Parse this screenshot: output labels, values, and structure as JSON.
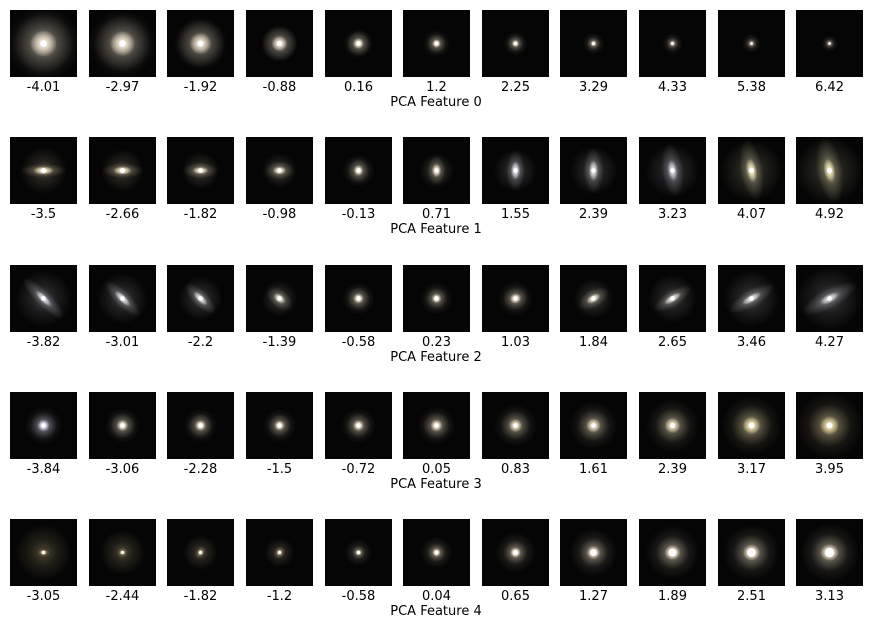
{
  "rows": [
    {
      "label": "PCA Feature 0",
      "values": [
        "-4.01",
        "-2.97",
        "-1.92",
        "-0.88",
        "0.16",
        "1.2",
        "2.25",
        "3.29",
        "4.33",
        "5.38",
        "6.42"
      ],
      "cells": [
        {
          "rx": 0.45,
          "ry": 0.45,
          "angle": 0,
          "halo": 0.55,
          "core": 0.1,
          "color": "#e8dcc8"
        },
        {
          "rx": 0.42,
          "ry": 0.42,
          "angle": 0,
          "halo": 0.5,
          "core": 0.1,
          "color": "#e6dac6"
        },
        {
          "rx": 0.36,
          "ry": 0.36,
          "angle": 0,
          "halo": 0.4,
          "core": 0.09,
          "color": "#e4d8c4"
        },
        {
          "rx": 0.26,
          "ry": 0.26,
          "angle": 0,
          "halo": 0.28,
          "core": 0.08,
          "color": "#e8dcc8"
        },
        {
          "rx": 0.18,
          "ry": 0.18,
          "angle": 0,
          "halo": 0.22,
          "core": 0.07,
          "color": "#f0e4cc"
        },
        {
          "rx": 0.14,
          "ry": 0.14,
          "angle": 0,
          "halo": 0.2,
          "core": 0.06,
          "color": "#f2e6ce"
        },
        {
          "rx": 0.12,
          "ry": 0.12,
          "angle": 0,
          "halo": 0.18,
          "core": 0.05,
          "color": "#f2e6ce"
        },
        {
          "rx": 0.1,
          "ry": 0.1,
          "angle": 0,
          "halo": 0.16,
          "core": 0.045,
          "color": "#f2e6ce"
        },
        {
          "rx": 0.09,
          "ry": 0.09,
          "angle": 0,
          "halo": 0.15,
          "core": 0.04,
          "color": "#f2e6ce"
        },
        {
          "rx": 0.08,
          "ry": 0.08,
          "angle": 0,
          "halo": 0.14,
          "core": 0.035,
          "color": "#f2e6ce"
        },
        {
          "rx": 0.07,
          "ry": 0.07,
          "angle": 0,
          "halo": 0.12,
          "core": 0.03,
          "color": "#f2e6ce"
        }
      ]
    },
    {
      "label": "PCA Feature 1",
      "values": [
        "-3.5",
        "-2.66",
        "-1.82",
        "-0.98",
        "-0.13",
        "0.71",
        "1.55",
        "2.39",
        "3.23",
        "4.07",
        "4.92"
      ],
      "cells": [
        {
          "rx": 0.34,
          "ry": 0.1,
          "angle": 0,
          "halo": 0.35,
          "core": 0.08,
          "color": "#f0e0b8"
        },
        {
          "rx": 0.3,
          "ry": 0.11,
          "angle": 0,
          "halo": 0.32,
          "core": 0.08,
          "color": "#efe0ba"
        },
        {
          "rx": 0.26,
          "ry": 0.12,
          "angle": 0,
          "halo": 0.28,
          "core": 0.07,
          "color": "#ede0c0"
        },
        {
          "rx": 0.22,
          "ry": 0.14,
          "angle": 0,
          "halo": 0.26,
          "core": 0.07,
          "color": "#ece0c4"
        },
        {
          "rx": 0.16,
          "ry": 0.18,
          "angle": 0,
          "halo": 0.24,
          "core": 0.07,
          "color": "#ede2c8"
        },
        {
          "rx": 0.14,
          "ry": 0.22,
          "angle": 0,
          "halo": 0.26,
          "core": 0.07,
          "color": "#ede2c8"
        },
        {
          "rx": 0.14,
          "ry": 0.3,
          "angle": 0,
          "halo": 0.32,
          "core": 0.07,
          "color": "#d8d6e0"
        },
        {
          "rx": 0.15,
          "ry": 0.34,
          "angle": 0,
          "halo": 0.36,
          "core": 0.07,
          "color": "#dcd8d8"
        },
        {
          "rx": 0.16,
          "ry": 0.4,
          "angle": -8,
          "halo": 0.4,
          "core": 0.07,
          "color": "#d0d0dc"
        },
        {
          "rx": 0.17,
          "ry": 0.46,
          "angle": -10,
          "halo": 0.46,
          "core": 0.08,
          "color": "#e8e0b4"
        },
        {
          "rx": 0.19,
          "ry": 0.5,
          "angle": -10,
          "halo": 0.5,
          "core": 0.08,
          "color": "#e8e0b0"
        }
      ]
    },
    {
      "label": "PCA Feature 2",
      "values": [
        "-3.82",
        "-3.01",
        "-2.2",
        "-1.39",
        "-0.58",
        "0.23",
        "1.03",
        "1.84",
        "2.65",
        "3.46",
        "4.27"
      ],
      "cells": [
        {
          "rx": 0.42,
          "ry": 0.12,
          "angle": 45,
          "halo": 0.42,
          "core": 0.07,
          "color": "#d8d8e4"
        },
        {
          "rx": 0.36,
          "ry": 0.12,
          "angle": 45,
          "halo": 0.38,
          "core": 0.07,
          "color": "#dcdce4"
        },
        {
          "rx": 0.3,
          "ry": 0.12,
          "angle": 45,
          "halo": 0.33,
          "core": 0.07,
          "color": "#e0dee0"
        },
        {
          "rx": 0.22,
          "ry": 0.14,
          "angle": 40,
          "halo": 0.27,
          "core": 0.07,
          "color": "#e8e0cc"
        },
        {
          "rx": 0.17,
          "ry": 0.17,
          "angle": 0,
          "halo": 0.24,
          "core": 0.07,
          "color": "#ece2c8"
        },
        {
          "rx": 0.16,
          "ry": 0.16,
          "angle": 0,
          "halo": 0.24,
          "core": 0.07,
          "color": "#ece2c8"
        },
        {
          "rx": 0.19,
          "ry": 0.17,
          "angle": -20,
          "halo": 0.26,
          "core": 0.07,
          "color": "#ece2c8"
        },
        {
          "rx": 0.25,
          "ry": 0.14,
          "angle": -30,
          "halo": 0.3,
          "core": 0.07,
          "color": "#e8e0cc"
        },
        {
          "rx": 0.32,
          "ry": 0.12,
          "angle": -32,
          "halo": 0.36,
          "core": 0.07,
          "color": "#e0dcd8"
        },
        {
          "rx": 0.38,
          "ry": 0.13,
          "angle": -30,
          "halo": 0.42,
          "core": 0.07,
          "color": "#dcdcdc"
        },
        {
          "rx": 0.45,
          "ry": 0.15,
          "angle": -28,
          "halo": 0.48,
          "core": 0.07,
          "color": "#d4d4dc"
        }
      ]
    },
    {
      "label": "PCA Feature 3",
      "values": [
        "-3.84",
        "-3.06",
        "-2.28",
        "-1.5",
        "-0.72",
        "0.05",
        "0.83",
        "1.61",
        "2.39",
        "3.17",
        "3.95"
      ],
      "cells": [
        {
          "rx": 0.2,
          "ry": 0.2,
          "angle": 0,
          "halo": 0.28,
          "core": 0.07,
          "color": "#dcdcf0"
        },
        {
          "rx": 0.19,
          "ry": 0.19,
          "angle": 0,
          "halo": 0.26,
          "core": 0.07,
          "color": "#ece2cc"
        },
        {
          "rx": 0.18,
          "ry": 0.18,
          "angle": 0,
          "halo": 0.25,
          "core": 0.07,
          "color": "#eee2c8"
        },
        {
          "rx": 0.17,
          "ry": 0.17,
          "angle": 0,
          "halo": 0.25,
          "core": 0.07,
          "color": "#eee2c8"
        },
        {
          "rx": 0.18,
          "ry": 0.18,
          "angle": 0,
          "halo": 0.26,
          "core": 0.07,
          "color": "#eee2c8"
        },
        {
          "rx": 0.2,
          "ry": 0.2,
          "angle": 0,
          "halo": 0.28,
          "core": 0.07,
          "color": "#ece0c4"
        },
        {
          "rx": 0.22,
          "ry": 0.22,
          "angle": 0,
          "halo": 0.32,
          "core": 0.07,
          "color": "#e8dcbe"
        },
        {
          "rx": 0.24,
          "ry": 0.24,
          "angle": 0,
          "halo": 0.36,
          "core": 0.07,
          "color": "#e6dabc"
        },
        {
          "rx": 0.26,
          "ry": 0.26,
          "angle": 0,
          "halo": 0.4,
          "core": 0.08,
          "color": "#e6d8b4"
        },
        {
          "rx": 0.3,
          "ry": 0.3,
          "angle": 0,
          "halo": 0.45,
          "core": 0.09,
          "color": "#e8d8a8"
        },
        {
          "rx": 0.32,
          "ry": 0.32,
          "angle": 0,
          "halo": 0.5,
          "core": 0.09,
          "color": "#e4d4a0"
        }
      ]
    },
    {
      "label": "PCA Feature 4",
      "values": [
        "-3.05",
        "-2.44",
        "-1.82",
        "-1.2",
        "-0.58",
        "0.04",
        "0.65",
        "1.27",
        "1.89",
        "2.51",
        "3.13"
      ],
      "cells": [
        {
          "rx": 0.1,
          "ry": 0.06,
          "angle": 0,
          "halo": 0.42,
          "core": 0.05,
          "color": "#f0d898"
        },
        {
          "rx": 0.08,
          "ry": 0.08,
          "angle": 0,
          "halo": 0.34,
          "core": 0.045,
          "color": "#f0dca8"
        },
        {
          "rx": 0.07,
          "ry": 0.1,
          "angle": 30,
          "halo": 0.26,
          "core": 0.045,
          "color": "#f0dcb0"
        },
        {
          "rx": 0.08,
          "ry": 0.1,
          "angle": 30,
          "halo": 0.22,
          "core": 0.045,
          "color": "#f0dcb8"
        },
        {
          "rx": 0.1,
          "ry": 0.1,
          "angle": 0,
          "halo": 0.2,
          "core": 0.05,
          "color": "#f0e0c0"
        },
        {
          "rx": 0.14,
          "ry": 0.14,
          "angle": 0,
          "halo": 0.24,
          "core": 0.06,
          "color": "#f0e2c4"
        },
        {
          "rx": 0.18,
          "ry": 0.18,
          "angle": 0,
          "halo": 0.3,
          "core": 0.08,
          "color": "#f2e4c8"
        },
        {
          "rx": 0.22,
          "ry": 0.22,
          "angle": 0,
          "halo": 0.36,
          "core": 0.1,
          "color": "#f4e6cc"
        },
        {
          "rx": 0.25,
          "ry": 0.25,
          "angle": 0,
          "halo": 0.4,
          "core": 0.12,
          "color": "#f4e6cc"
        },
        {
          "rx": 0.27,
          "ry": 0.27,
          "angle": 0,
          "halo": 0.42,
          "core": 0.13,
          "color": "#f4e6cc"
        },
        {
          "rx": 0.28,
          "ry": 0.28,
          "angle": 0,
          "halo": 0.44,
          "core": 0.14,
          "color": "#f4e6cc"
        }
      ]
    }
  ]
}
